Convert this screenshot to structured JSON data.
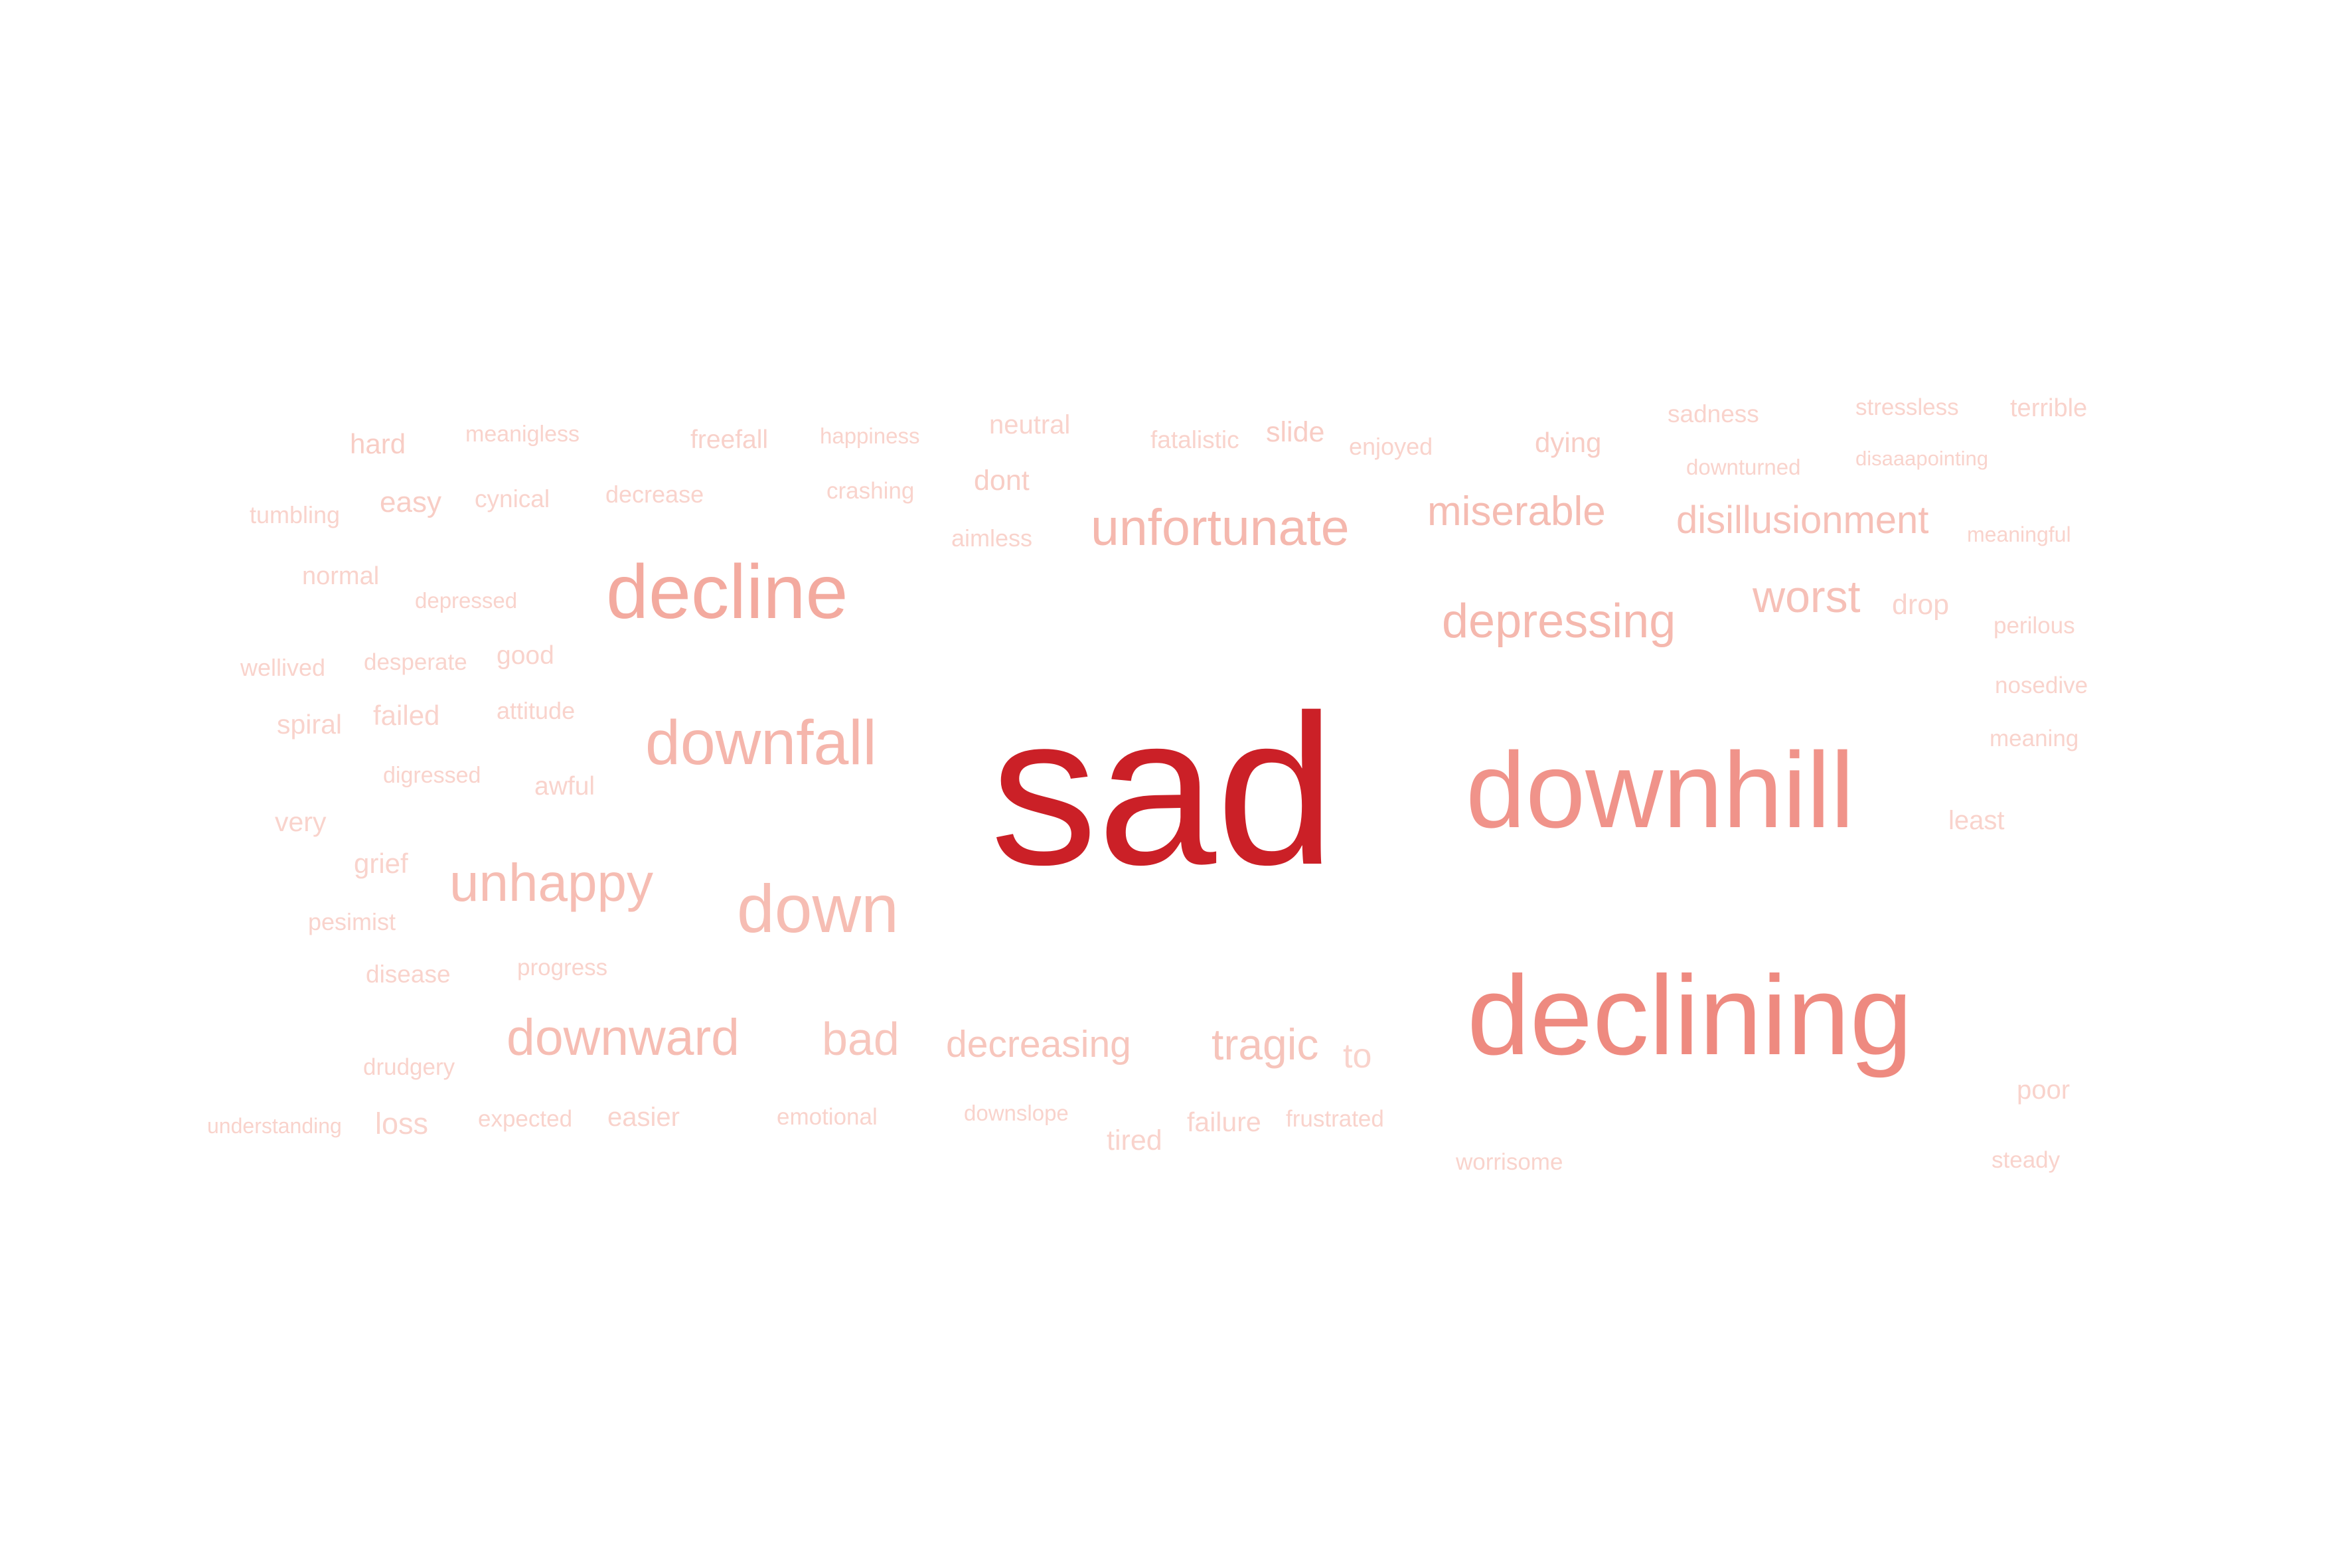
{
  "words": [
    {
      "text": "sad",
      "weight": 100,
      "color": "#cb2027"
    },
    {
      "text": "downhill",
      "weight": 52,
      "color": "#f0938a"
    },
    {
      "text": "declining",
      "weight": 52,
      "color": "#ee8a80"
    },
    {
      "text": "decline",
      "weight": 34,
      "color": "#f3aa9f"
    },
    {
      "text": "downfall",
      "weight": 30,
      "color": "#f5b6ac"
    },
    {
      "text": "down",
      "weight": 30,
      "color": "#f6bdb3"
    },
    {
      "text": "unhappy",
      "weight": 24,
      "color": "#f6bdb3"
    },
    {
      "text": "unfortunate",
      "weight": 24,
      "color": "#f5b8ae"
    },
    {
      "text": "depressing",
      "weight": 22,
      "color": "#f5b8ae"
    },
    {
      "text": "downward",
      "weight": 23,
      "color": "#f6bdb3"
    },
    {
      "text": "bad",
      "weight": 22,
      "color": "#f7c6bd"
    },
    {
      "text": "miserable",
      "weight": 19,
      "color": "#f5bcb2"
    },
    {
      "text": "disillusionment",
      "weight": 17,
      "color": "#f6c0b7"
    },
    {
      "text": "worst",
      "weight": 20,
      "color": "#f6c0b7"
    },
    {
      "text": "tragic",
      "weight": 20,
      "color": "#f6c4bb"
    },
    {
      "text": "decreasing",
      "weight": 17,
      "color": "#f7c6bd"
    },
    {
      "text": "dont",
      "weight": 11,
      "color": "#f8cdc5"
    },
    {
      "text": "slide",
      "weight": 11,
      "color": "#f8cdc5"
    },
    {
      "text": "dying",
      "weight": 11,
      "color": "#f8cdc5"
    },
    {
      "text": "hard",
      "weight": 11,
      "color": "#f8cdc5"
    },
    {
      "text": "easy",
      "weight": 11,
      "color": "#f8cdc5"
    },
    {
      "text": "freefall",
      "weight": 11,
      "color": "#f8d1ca"
    },
    {
      "text": "neutral",
      "weight": 11,
      "color": "#f9d3cc"
    },
    {
      "text": "sadness",
      "weight": 10,
      "color": "#f9d3cc"
    },
    {
      "text": "terrible",
      "weight": 10,
      "color": "#f9d3cc"
    },
    {
      "text": "drop",
      "weight": 11,
      "color": "#f9d3cc"
    },
    {
      "text": "to",
      "weight": 12,
      "color": "#f9d3cc"
    },
    {
      "text": "tired",
      "weight": 11,
      "color": "#f9d3cc"
    },
    {
      "text": "failure",
      "weight": 11,
      "color": "#f9d3cc"
    },
    {
      "text": "loss",
      "weight": 11,
      "color": "#f9d3cc"
    },
    {
      "text": "easier",
      "weight": 10,
      "color": "#f9d3cc"
    },
    {
      "text": "very",
      "weight": 10,
      "color": "#f9d3cc"
    },
    {
      "text": "grief",
      "weight": 10,
      "color": "#f9d3cc"
    },
    {
      "text": "awful",
      "weight": 10,
      "color": "#f9d3cc"
    },
    {
      "text": "spiral",
      "weight": 10,
      "color": "#f9d3cc"
    },
    {
      "text": "failed",
      "weight": 10,
      "color": "#f9d3cc"
    },
    {
      "text": "good",
      "weight": 10,
      "color": "#f9d3cc"
    },
    {
      "text": "poor",
      "weight": 10,
      "color": "#f9d3cc"
    },
    {
      "text": "least",
      "weight": 10,
      "color": "#f9d3cc"
    },
    {
      "text": "fatalistic",
      "weight": 9,
      "color": "#f9d3cc"
    },
    {
      "text": "enjoyed",
      "weight": 9,
      "color": "#f9d3cc"
    },
    {
      "text": "stressless",
      "weight": 9,
      "color": "#f9d3cc"
    },
    {
      "text": "cynical",
      "weight": 9,
      "color": "#f9d3cc"
    },
    {
      "text": "decrease",
      "weight": 9,
      "color": "#f9d3cc"
    },
    {
      "text": "crashing",
      "weight": 9,
      "color": "#f9d3cc"
    },
    {
      "text": "aimless",
      "weight": 9,
      "color": "#f9d3cc"
    },
    {
      "text": "tumbling",
      "weight": 9,
      "color": "#f9d3cc"
    },
    {
      "text": "normal",
      "weight": 9,
      "color": "#f9d3cc"
    },
    {
      "text": "wellived",
      "weight": 9,
      "color": "#f9d3cc"
    },
    {
      "text": "desperate",
      "weight": 9,
      "color": "#f9d3cc"
    },
    {
      "text": "attitude",
      "weight": 9,
      "color": "#f9d3cc"
    },
    {
      "text": "perilous",
      "weight": 9,
      "color": "#f9d3cc"
    },
    {
      "text": "nosedive",
      "weight": 9,
      "color": "#f9d3cc"
    },
    {
      "text": "meaning",
      "weight": 9,
      "color": "#f9d3cc"
    },
    {
      "text": "expected",
      "weight": 9,
      "color": "#f9d3cc"
    },
    {
      "text": "emotional",
      "weight": 9,
      "color": "#f9d3cc"
    },
    {
      "text": "frustrated",
      "weight": 9,
      "color": "#f9d3cc"
    },
    {
      "text": "steady",
      "weight": 9,
      "color": "#f9d3cc"
    },
    {
      "text": "worrisome",
      "weight": 9,
      "color": "#f9d3cc"
    },
    {
      "text": "pesimist",
      "weight": 9,
      "color": "#f9d3cc"
    },
    {
      "text": "disease",
      "weight": 9,
      "color": "#f9d3cc"
    },
    {
      "text": "progress",
      "weight": 9,
      "color": "#f9d3cc"
    },
    {
      "text": "drudgery",
      "weight": 9,
      "color": "#f9d3cc"
    },
    {
      "text": "meanigless",
      "weight": 8,
      "color": "#f9d3cc"
    },
    {
      "text": "happiness",
      "weight": 8,
      "color": "#f9d3cc"
    },
    {
      "text": "downturned",
      "weight": 8,
      "color": "#f9d3cc"
    },
    {
      "text": "disaaapointing",
      "weight": 8,
      "color": "#f9d3cc"
    },
    {
      "text": "meaningful",
      "weight": 8,
      "color": "#f9d3cc"
    },
    {
      "text": "depressed",
      "weight": 8,
      "color": "#f9d3cc"
    },
    {
      "text": "digressed",
      "weight": 8,
      "color": "#f9d3cc"
    },
    {
      "text": "understanding",
      "weight": 8,
      "color": "#f9d3cc"
    },
    {
      "text": "downslope",
      "weight": 8,
      "color": "#f9d3cc"
    }
  ]
}
